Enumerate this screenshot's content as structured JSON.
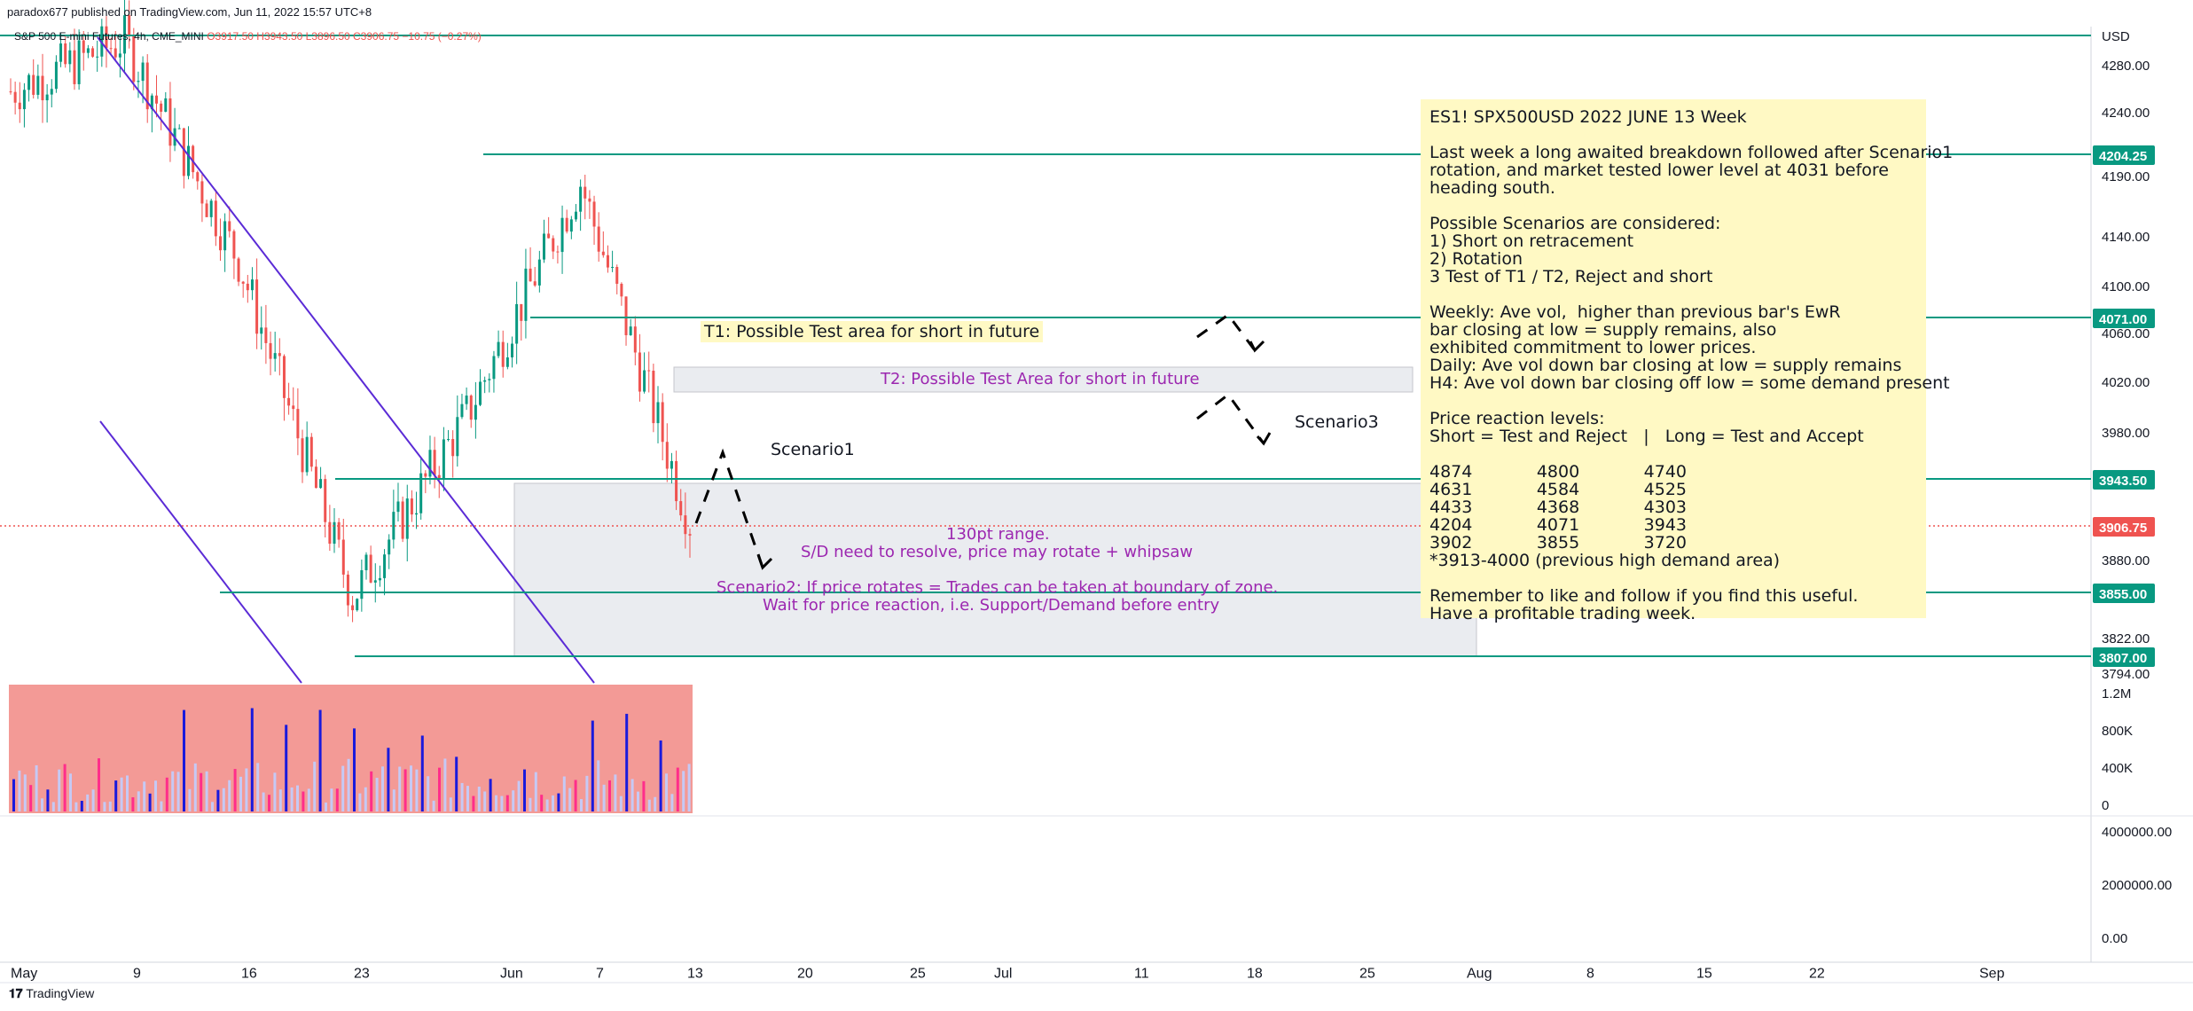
{
  "header": {
    "published": "paradox677 published on TradingView.com, Jun 11, 2022 15:57 UTC+8"
  },
  "legend": {
    "symbol": "S&P 500 E-mini Futures, 4h, CME_MINI",
    "ohlc": "O3917.50 H3943.50 L3896.50 C3906.75 −10.75 (−0.27%)"
  },
  "price_axis": {
    "currency": "USD",
    "ticks": [
      "4280.00",
      "4240.00",
      "4190.00",
      "4140.00",
      "4100.00",
      "4060.00",
      "4020.00",
      "3980.00",
      "3880.00",
      "3822.00",
      "3794.00"
    ]
  },
  "price_tags": [
    {
      "value": "4204.25",
      "color": "#089981"
    },
    {
      "value": "4071.00",
      "color": "#089981"
    },
    {
      "value": "3943.50",
      "color": "#089981"
    },
    {
      "value": "3906.75",
      "color": "#ef5350"
    },
    {
      "value": "3855.00",
      "color": "#089981"
    },
    {
      "value": "3807.00",
      "color": "#089981"
    }
  ],
  "volume_axis": {
    "ticks": [
      "1.2M",
      "800K",
      "400K",
      "0"
    ]
  },
  "lower_axis": {
    "ticks": [
      "4000000.00",
      "2000000.00",
      "0.00"
    ]
  },
  "time_axis": {
    "labels": [
      "May",
      "9",
      "16",
      "23",
      "Jun",
      "7",
      "13",
      "20",
      "25",
      "Jul",
      "11",
      "18",
      "25",
      "Aug",
      "8",
      "15",
      "22",
      "Sep"
    ]
  },
  "annotations": {
    "t1": "T1: Possible Test area for short in future",
    "t2": "T2: Possible Test Area for short in future",
    "scenario1": "Scenario1",
    "scenario3": "Scenario3",
    "range1": "130pt range.",
    "range2": "S/D need to resolve, price may rotate + whipsaw",
    "scenario2a": "Scenario2: If price rotates = Trades can be taken at boundary of zone.",
    "scenario2b": "Wait for price reaction, i.e. Support/Demand before entry"
  },
  "note": {
    "lines": [
      "ES1! SPX500USD 2022 JUNE 13 Week",
      "",
      "Last week a long awaited breakdown followed after Scenario1",
      "rotation, and market tested lower level at 4031 before",
      "heading south.",
      "",
      "Possible Scenarios are considered:",
      "1) Short on retracement",
      "2) Rotation",
      "3 Test of T1 / T2, Reject and short",
      "",
      "Weekly: Ave vol,  higher than previous bar's EwR",
      "bar closing at low = supply remains, also",
      "exhibited commitment to lower prices.",
      "Daily: Ave vol down bar closing at low = supply remains",
      "H4: Ave vol down bar closing off low = some demand present",
      "",
      "Price reaction levels:",
      "Short = Test and Reject   |   Long = Test and Accept",
      "",
      "4874            4800            4740",
      "4631            4584            4525",
      "4433            4368            4303",
      "4204            4071            3943",
      "3902            3855            3720",
      "*3913-4000 (previous high demand area)",
      "",
      "Remember to like and follow if you find this useful.",
      "Have a profitable trading week."
    ]
  },
  "footer": {
    "logo": "TradingView"
  },
  "colors": {
    "up": "#089981",
    "down": "#ef5350",
    "level": "#089981",
    "channel": "#5b2bd6",
    "annotation": "#9c27b0",
    "volume_bg": "#f39a96"
  },
  "chart_data": {
    "type": "line",
    "title": "",
    "xlabel": "",
    "ylabel": "",
    "ylim": [
      3794,
      4300
    ],
    "x": [
      "May",
      "9",
      "16",
      "23",
      "Jun",
      "7",
      "13"
    ],
    "series": [
      {
        "values": [
          4250,
          4290,
          4120,
          3860,
          4000,
          4180,
          3906.75
        ]
      }
    ],
    "levels": [
      4300,
      4204.25,
      4071.0,
      3943.5,
      3906.75,
      3855.0,
      3807.0
    ],
    "grid": false
  }
}
